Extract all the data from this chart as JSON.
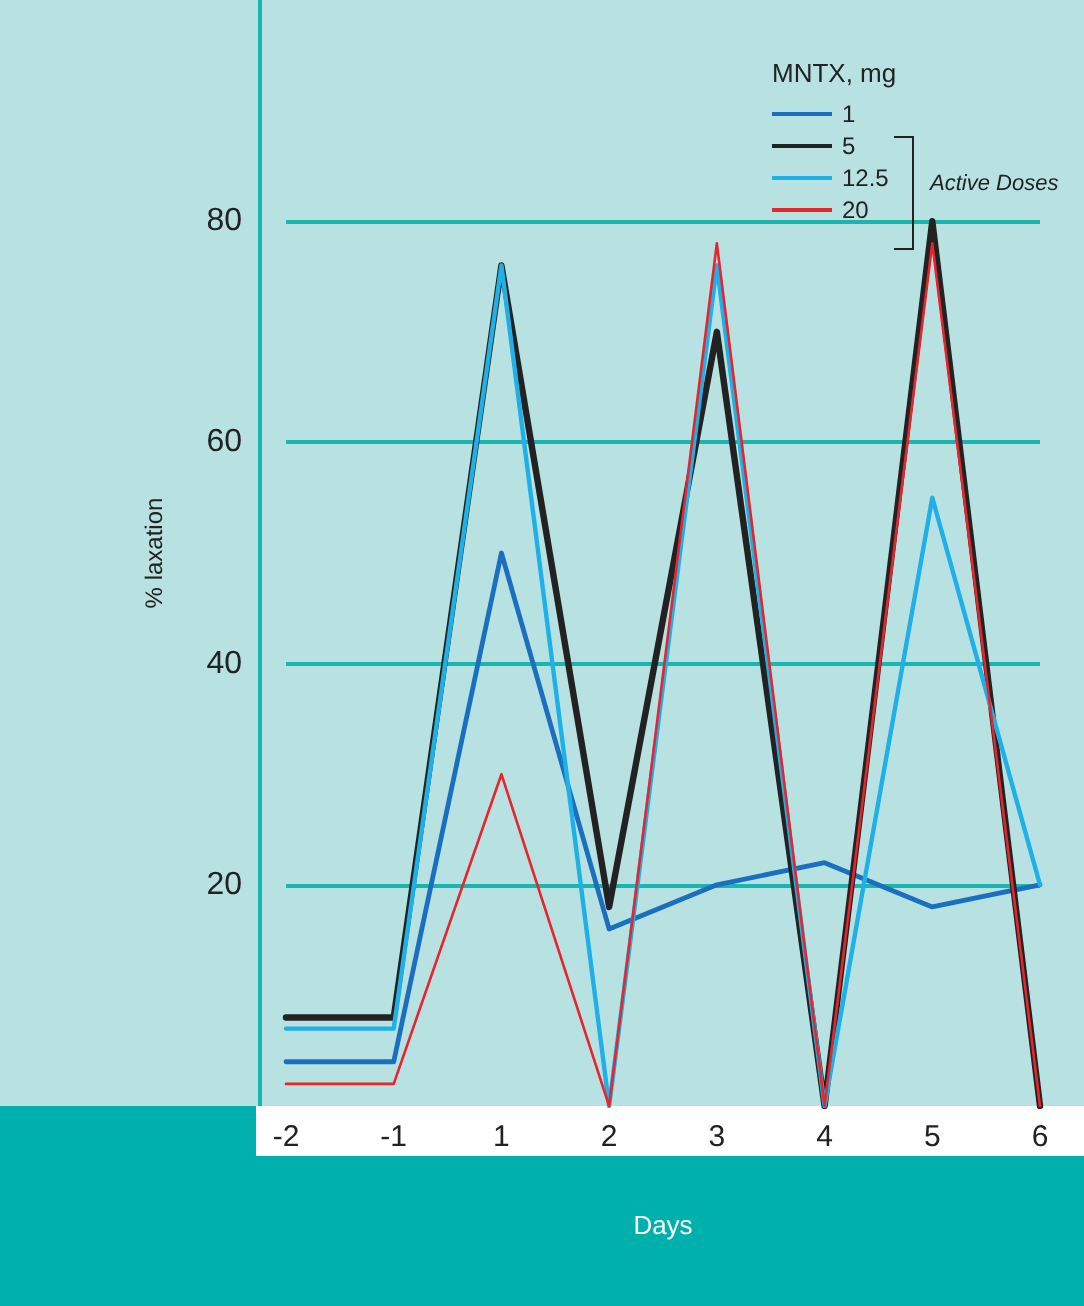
{
  "chart_data": {
    "type": "line",
    "xlabel": "Days",
    "ylabel": "% laxation",
    "legend_title": "MNTX, mg",
    "annotations": [
      "Active Doses"
    ],
    "categories": [
      "-2",
      "-1",
      "1",
      "2",
      "3",
      "4",
      "5",
      "6"
    ],
    "ylim": [
      0,
      100
    ],
    "yticks": [
      20,
      40,
      60,
      80
    ],
    "grid": "y",
    "legend": "top right",
    "marker": "none",
    "line_style": "solid",
    "series": [
      {
        "name": "1",
        "color": "#1a6fbf",
        "values": [
          4,
          4,
          50,
          16,
          20,
          22,
          18,
          20
        ]
      },
      {
        "name": "5",
        "color": "#222222",
        "values": [
          8,
          8,
          76,
          18,
          70,
          0,
          80,
          0
        ]
      },
      {
        "name": "12.5",
        "color": "#1fb0e8",
        "values": [
          7,
          7,
          76,
          0,
          76,
          0,
          55,
          20
        ]
      },
      {
        "name": "20",
        "color": "#e8242c",
        "values": [
          2,
          2,
          30,
          0,
          78,
          0,
          78,
          0
        ]
      }
    ]
  }
}
